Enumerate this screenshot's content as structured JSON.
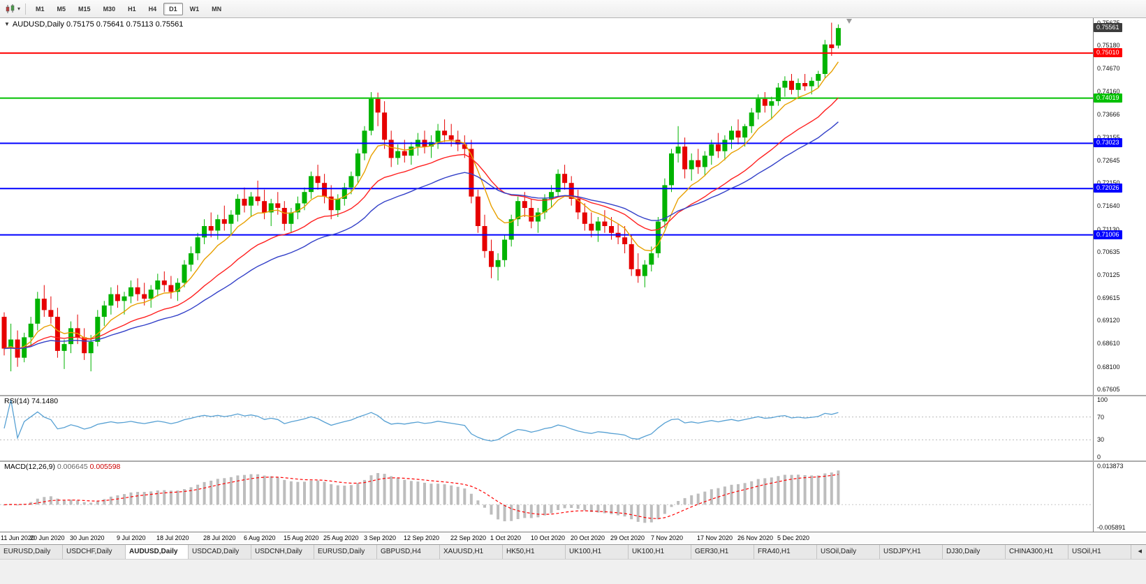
{
  "toolbar": {
    "timeframes": [
      "M1",
      "M5",
      "M15",
      "M30",
      "H1",
      "H4",
      "D1",
      "W1",
      "MN"
    ],
    "active_timeframe": "D1",
    "chart_type_icon": "candlestick-chart",
    "dropdown_icon": "caret-down"
  },
  "chart_header": {
    "symbol": "AUDUSD,Daily",
    "ohlc_text": "0.75175 0.75641 0.75113 0.75561"
  },
  "chart_data": {
    "type": "candlestick",
    "title": "AUDUSD,Daily",
    "colors": {
      "up": "#00b300",
      "down": "#e60000",
      "background": "#ffffff"
    },
    "y_axis": {
      "min": 0.6748,
      "max": 0.7578,
      "tick_labels": [
        "0.75675",
        "0.75180",
        "0.74670",
        "0.74160",
        "0.73666",
        "0.73155",
        "0.72645",
        "0.72150",
        "0.71640",
        "0.71130",
        "0.70635",
        "0.70125",
        "0.69615",
        "0.69120",
        "0.68610",
        "0.68100",
        "0.67605"
      ]
    },
    "x_axis": {
      "tick_labels": [
        "11 Jun 2020",
        "20 Jun 2020",
        "30 Jun 2020",
        "9 Jul 2020",
        "18 Jul 2020",
        "28 Jul 2020",
        "6 Aug 2020",
        "15 Aug 2020",
        "25 Aug 2020",
        "3 Sep 2020",
        "12 Sep 2020",
        "22 Sep 2020",
        "1 Oct 2020",
        "10 Oct 2020",
        "20 Oct 2020",
        "29 Oct 2020",
        "7 Nov 2020",
        "17 Nov 2020",
        "26 Nov 2020",
        "5 Dec 2020"
      ],
      "tick_indices": [
        1,
        7,
        13,
        20,
        26,
        33,
        39,
        45,
        51,
        57,
        63,
        70,
        76,
        82,
        88,
        94,
        100,
        107,
        113,
        119
      ]
    },
    "hlines": [
      {
        "price": 0.7501,
        "label": "0.75010",
        "color": "#ff0000",
        "width": 2
      },
      {
        "price": 0.74019,
        "label": "0.74019",
        "color": "#00c000",
        "width": 2
      },
      {
        "price": 0.73023,
        "label": "0.73023",
        "color": "#0000ff",
        "width": 2
      },
      {
        "price": 0.72026,
        "label": "0.72026",
        "color": "#0000ff",
        "width": 2
      },
      {
        "price": 0.71006,
        "label": "0.71006",
        "color": "#0000ff",
        "width": 2
      }
    ],
    "price_tag": {
      "price": 0.75561,
      "label": "0.75561",
      "color": "#3c3c3c"
    },
    "moving_averages": [
      {
        "name": "ma-fast",
        "period": 8,
        "color": "#e8a000"
      },
      {
        "name": "ma-mid",
        "period": 21,
        "color": "#ff2020"
      },
      {
        "name": "ma-slow",
        "period": 34,
        "color": "#3340c8"
      }
    ],
    "rsi": {
      "label": "RSI(14)",
      "value_text": "74.1480",
      "period": 14,
      "color": "#56a0d3",
      "levels": [
        {
          "v": 100,
          "label": "100",
          "dashed": false
        },
        {
          "v": 70,
          "label": "70",
          "dashed": true
        },
        {
          "v": 30,
          "label": "30",
          "dashed": true
        },
        {
          "v": 0,
          "label": "0",
          "dashed": false
        }
      ]
    },
    "macd": {
      "label": "MACD(12,26,9)",
      "main_value": "0.006645",
      "signal_value": "0.005598",
      "fast": 12,
      "slow": 26,
      "signal": 9,
      "hist_color": "#bdbdbd",
      "signal_color": "#ff0000",
      "max_label": "0.013873",
      "min_label": "-0.005891"
    },
    "candles": [
      [
        0.692,
        0.693,
        0.6835,
        0.685
      ],
      [
        0.685,
        0.6905,
        0.68,
        0.687
      ],
      [
        0.687,
        0.689,
        0.681,
        0.683
      ],
      [
        0.683,
        0.6885,
        0.682,
        0.6875
      ],
      [
        0.6875,
        0.692,
        0.6855,
        0.6905
      ],
      [
        0.6905,
        0.6975,
        0.689,
        0.696
      ],
      [
        0.696,
        0.699,
        0.692,
        0.6935
      ],
      [
        0.6935,
        0.6965,
        0.6905,
        0.692
      ],
      [
        0.692,
        0.694,
        0.683,
        0.6845
      ],
      [
        0.6845,
        0.687,
        0.6805,
        0.686
      ],
      [
        0.686,
        0.691,
        0.684,
        0.6895
      ],
      [
        0.6895,
        0.6925,
        0.686,
        0.6875
      ],
      [
        0.6875,
        0.6895,
        0.6825,
        0.684
      ],
      [
        0.684,
        0.688,
        0.68,
        0.6865
      ],
      [
        0.6865,
        0.6935,
        0.6855,
        0.692
      ],
      [
        0.692,
        0.6955,
        0.69,
        0.6945
      ],
      [
        0.6945,
        0.6985,
        0.6925,
        0.697
      ],
      [
        0.697,
        0.699,
        0.694,
        0.6955
      ],
      [
        0.6955,
        0.6975,
        0.6925,
        0.6965
      ],
      [
        0.6965,
        0.7,
        0.695,
        0.6985
      ],
      [
        0.6985,
        0.7005,
        0.6955,
        0.697
      ],
      [
        0.697,
        0.6995,
        0.6945,
        0.696
      ],
      [
        0.696,
        0.699,
        0.694,
        0.698
      ],
      [
        0.698,
        0.7015,
        0.6965,
        0.7
      ],
      [
        0.7,
        0.702,
        0.6975,
        0.699
      ],
      [
        0.699,
        0.701,
        0.696,
        0.6975
      ],
      [
        0.6975,
        0.7005,
        0.6955,
        0.6995
      ],
      [
        0.6995,
        0.7045,
        0.6985,
        0.7035
      ],
      [
        0.7035,
        0.7075,
        0.702,
        0.706
      ],
      [
        0.706,
        0.7105,
        0.7045,
        0.7095
      ],
      [
        0.7095,
        0.7135,
        0.708,
        0.712
      ],
      [
        0.712,
        0.715,
        0.7095,
        0.711
      ],
      [
        0.711,
        0.7145,
        0.709,
        0.7135
      ],
      [
        0.7135,
        0.7165,
        0.711,
        0.7125
      ],
      [
        0.7125,
        0.7155,
        0.71,
        0.7145
      ],
      [
        0.7145,
        0.719,
        0.713,
        0.718
      ],
      [
        0.718,
        0.7205,
        0.715,
        0.7165
      ],
      [
        0.7165,
        0.7195,
        0.714,
        0.7185
      ],
      [
        0.7185,
        0.722,
        0.7165,
        0.7175
      ],
      [
        0.7175,
        0.72,
        0.7135,
        0.715
      ],
      [
        0.715,
        0.718,
        0.712,
        0.717
      ],
      [
        0.717,
        0.7195,
        0.7145,
        0.716
      ],
      [
        0.716,
        0.7175,
        0.711,
        0.7125
      ],
      [
        0.7125,
        0.716,
        0.7105,
        0.715
      ],
      [
        0.715,
        0.7185,
        0.7135,
        0.717
      ],
      [
        0.717,
        0.7205,
        0.7155,
        0.7195
      ],
      [
        0.7195,
        0.724,
        0.718,
        0.723
      ],
      [
        0.723,
        0.7255,
        0.72,
        0.7215
      ],
      [
        0.7215,
        0.7235,
        0.717,
        0.7185
      ],
      [
        0.7185,
        0.721,
        0.7135,
        0.7155
      ],
      [
        0.7155,
        0.719,
        0.714,
        0.718
      ],
      [
        0.718,
        0.7215,
        0.7165,
        0.7205
      ],
      [
        0.7205,
        0.724,
        0.719,
        0.723
      ],
      [
        0.723,
        0.729,
        0.7215,
        0.728
      ],
      [
        0.728,
        0.734,
        0.7265,
        0.733
      ],
      [
        0.733,
        0.7415,
        0.732,
        0.74
      ],
      [
        0.74,
        0.7414,
        0.734,
        0.737
      ],
      [
        0.737,
        0.7395,
        0.729,
        0.731
      ],
      [
        0.731,
        0.733,
        0.725,
        0.727
      ],
      [
        0.727,
        0.73,
        0.7255,
        0.7285
      ],
      [
        0.7285,
        0.731,
        0.726,
        0.7275
      ],
      [
        0.7275,
        0.7305,
        0.7255,
        0.7295
      ],
      [
        0.7295,
        0.7325,
        0.7275,
        0.731
      ],
      [
        0.731,
        0.733,
        0.728,
        0.7295
      ],
      [
        0.7295,
        0.732,
        0.727,
        0.7305
      ],
      [
        0.7305,
        0.7345,
        0.729,
        0.733
      ],
      [
        0.733,
        0.7355,
        0.7305,
        0.732
      ],
      [
        0.732,
        0.7345,
        0.7295,
        0.731
      ],
      [
        0.731,
        0.733,
        0.7285,
        0.73
      ],
      [
        0.73,
        0.732,
        0.727,
        0.729
      ],
      [
        0.729,
        0.731,
        0.717,
        0.7185
      ],
      [
        0.7185,
        0.72,
        0.7105,
        0.712
      ],
      [
        0.712,
        0.7145,
        0.705,
        0.7065
      ],
      [
        0.7065,
        0.709,
        0.7005,
        0.703
      ],
      [
        0.703,
        0.706,
        0.7,
        0.7045
      ],
      [
        0.7045,
        0.71,
        0.703,
        0.709
      ],
      [
        0.709,
        0.7145,
        0.7075,
        0.7135
      ],
      [
        0.7135,
        0.7185,
        0.712,
        0.7175
      ],
      [
        0.7175,
        0.7195,
        0.714,
        0.716
      ],
      [
        0.716,
        0.718,
        0.7115,
        0.713
      ],
      [
        0.713,
        0.716,
        0.7105,
        0.715
      ],
      [
        0.715,
        0.719,
        0.7135,
        0.718
      ],
      [
        0.718,
        0.721,
        0.716,
        0.7195
      ],
      [
        0.7195,
        0.7245,
        0.7185,
        0.7235
      ],
      [
        0.7235,
        0.7255,
        0.72,
        0.7215
      ],
      [
        0.7215,
        0.723,
        0.7165,
        0.718
      ],
      [
        0.718,
        0.72,
        0.7135,
        0.715
      ],
      [
        0.715,
        0.717,
        0.711,
        0.7125
      ],
      [
        0.7125,
        0.715,
        0.7095,
        0.711
      ],
      [
        0.711,
        0.714,
        0.7085,
        0.713
      ],
      [
        0.713,
        0.7155,
        0.7105,
        0.712
      ],
      [
        0.712,
        0.714,
        0.709,
        0.7105
      ],
      [
        0.7105,
        0.7125,
        0.708,
        0.7095
      ],
      [
        0.7095,
        0.712,
        0.706,
        0.708
      ],
      [
        0.708,
        0.71,
        0.701,
        0.7025
      ],
      [
        0.7025,
        0.706,
        0.6995,
        0.701
      ],
      [
        0.701,
        0.7045,
        0.6985,
        0.7035
      ],
      [
        0.7035,
        0.7075,
        0.702,
        0.706
      ],
      [
        0.706,
        0.714,
        0.705,
        0.713
      ],
      [
        0.713,
        0.7225,
        0.7115,
        0.721
      ],
      [
        0.721,
        0.729,
        0.7195,
        0.728
      ],
      [
        0.728,
        0.734,
        0.726,
        0.7295
      ],
      [
        0.7295,
        0.7315,
        0.7225,
        0.7245
      ],
      [
        0.7245,
        0.728,
        0.722,
        0.7265
      ],
      [
        0.7265,
        0.729,
        0.7235,
        0.725
      ],
      [
        0.725,
        0.7285,
        0.723,
        0.7275
      ],
      [
        0.7275,
        0.731,
        0.7255,
        0.73
      ],
      [
        0.73,
        0.7325,
        0.727,
        0.7285
      ],
      [
        0.7285,
        0.732,
        0.7265,
        0.731
      ],
      [
        0.731,
        0.734,
        0.729,
        0.733
      ],
      [
        0.733,
        0.7355,
        0.73,
        0.7315
      ],
      [
        0.7315,
        0.7345,
        0.7295,
        0.734
      ],
      [
        0.734,
        0.738,
        0.7325,
        0.737
      ],
      [
        0.737,
        0.741,
        0.7355,
        0.74
      ],
      [
        0.74,
        0.7415,
        0.737,
        0.7385
      ],
      [
        0.7385,
        0.7405,
        0.7355,
        0.7395
      ],
      [
        0.7395,
        0.7435,
        0.7385,
        0.7425
      ],
      [
        0.7425,
        0.745,
        0.7405,
        0.744
      ],
      [
        0.744,
        0.7455,
        0.741,
        0.742
      ],
      [
        0.742,
        0.7445,
        0.74,
        0.7435
      ],
      [
        0.7435,
        0.7455,
        0.7418,
        0.7428
      ],
      [
        0.7428,
        0.7448,
        0.741,
        0.744
      ],
      [
        0.744,
        0.7462,
        0.7425,
        0.7455
      ],
      [
        0.7455,
        0.753,
        0.7445,
        0.752
      ],
      [
        0.752,
        0.7568,
        0.7495,
        0.7512
      ],
      [
        0.75175,
        0.75641,
        0.75113,
        0.75561
      ]
    ]
  },
  "tabs": {
    "items": [
      "EURUSD,Daily",
      "USDCHF,Daily",
      "AUDUSD,Daily",
      "USDCAD,Daily",
      "USDCNH,Daily",
      "EURUSD,Daily",
      "GBPUSD,H4",
      "XAUUSD,H1",
      "HK50,H1",
      "UK100,H1",
      "UK100,H1",
      "GER30,H1",
      "FRA40,H1",
      "USOil,Daily",
      "USDJPY,H1",
      "DJ30,Daily",
      "CHINA300,H1",
      "USOil,H1"
    ],
    "active_index": 2,
    "scroll_left_icon": "◂"
  }
}
